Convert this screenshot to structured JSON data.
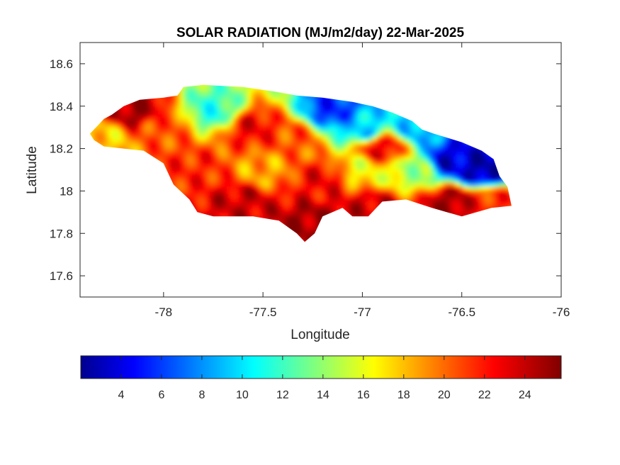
{
  "chart_data": {
    "type": "heatmap",
    "title": "SOLAR RADIATION (MJ/m2/day) 22-Mar-2025",
    "xlabel": "Longitude",
    "ylabel": "Latitude",
    "xlim": [
      -78.42,
      -76.0
    ],
    "ylim": [
      17.5,
      18.7
    ],
    "xticks": [
      -78,
      -77.5,
      -77,
      -76.5,
      -76
    ],
    "xtick_labels": [
      "-78",
      "-77.5",
      "-77",
      "-76.5",
      "-76"
    ],
    "yticks": [
      17.6,
      17.8,
      18.0,
      18.2,
      18.4,
      18.6
    ],
    "ytick_labels": [
      "17.6",
      "17.8",
      "18",
      "18.2",
      "18.4",
      "18.6"
    ],
    "grid": false,
    "colormap": "jet",
    "colorbar": {
      "location": "bottom",
      "range": [
        2.0,
        25.8
      ],
      "ticks": [
        4,
        6,
        8,
        10,
        12,
        14,
        16,
        18,
        20,
        22,
        24
      ],
      "tick_labels": [
        "4",
        "6",
        "8",
        "10",
        "12",
        "14",
        "16",
        "18",
        "20",
        "22",
        "24"
      ]
    },
    "region_outline": [
      [
        -78.37,
        18.27
      ],
      [
        -78.33,
        18.31
      ],
      [
        -78.3,
        18.34
      ],
      [
        -78.26,
        18.36
      ],
      [
        -78.2,
        18.4
      ],
      [
        -78.12,
        18.43
      ],
      [
        -78.0,
        18.44
      ],
      [
        -77.93,
        18.45
      ],
      [
        -77.9,
        18.49
      ],
      [
        -77.8,
        18.5
      ],
      [
        -77.6,
        18.49
      ],
      [
        -77.45,
        18.47
      ],
      [
        -77.33,
        18.45
      ],
      [
        -77.2,
        18.44
      ],
      [
        -77.05,
        18.42
      ],
      [
        -76.95,
        18.4
      ],
      [
        -76.85,
        18.37
      ],
      [
        -76.75,
        18.33
      ],
      [
        -76.7,
        18.29
      ],
      [
        -76.64,
        18.27
      ],
      [
        -76.5,
        18.23
      ],
      [
        -76.4,
        18.19
      ],
      [
        -76.34,
        18.15
      ],
      [
        -76.31,
        18.07
      ],
      [
        -76.27,
        18.02
      ],
      [
        -76.25,
        17.93
      ],
      [
        -76.35,
        17.92
      ],
      [
        -76.5,
        17.88
      ],
      [
        -76.65,
        17.92
      ],
      [
        -76.78,
        17.96
      ],
      [
        -76.9,
        17.95
      ],
      [
        -76.97,
        17.88
      ],
      [
        -77.05,
        17.88
      ],
      [
        -77.1,
        17.92
      ],
      [
        -77.2,
        17.88
      ],
      [
        -77.24,
        17.8
      ],
      [
        -77.29,
        17.76
      ],
      [
        -77.33,
        17.8
      ],
      [
        -77.42,
        17.86
      ],
      [
        -77.55,
        17.88
      ],
      [
        -77.75,
        17.88
      ],
      [
        -77.83,
        17.9
      ],
      [
        -77.87,
        17.96
      ],
      [
        -77.95,
        18.03
      ],
      [
        -78.0,
        18.13
      ],
      [
        -78.1,
        18.19
      ],
      [
        -78.2,
        18.2
      ],
      [
        -78.3,
        18.21
      ],
      [
        -78.35,
        18.24
      ]
    ],
    "field_anchors": [
      {
        "lon": -78.3,
        "lat": 18.25,
        "value": 18
      },
      {
        "lon": -78.15,
        "lat": 18.38,
        "value": 25
      },
      {
        "lon": -78.0,
        "lat": 18.3,
        "value": 21
      },
      {
        "lon": -77.85,
        "lat": 18.1,
        "value": 22
      },
      {
        "lon": -77.75,
        "lat": 18.38,
        "value": 12
      },
      {
        "lon": -77.55,
        "lat": 18.3,
        "value": 23
      },
      {
        "lon": -77.5,
        "lat": 18.1,
        "value": 19
      },
      {
        "lon": -77.6,
        "lat": 17.95,
        "value": 24
      },
      {
        "lon": -77.35,
        "lat": 18.25,
        "value": 21
      },
      {
        "lon": -77.25,
        "lat": 17.85,
        "value": 25
      },
      {
        "lon": -77.2,
        "lat": 18.05,
        "value": 23
      },
      {
        "lon": -77.15,
        "lat": 18.38,
        "value": 6
      },
      {
        "lon": -77.0,
        "lat": 18.3,
        "value": 10
      },
      {
        "lon": -77.0,
        "lat": 18.1,
        "value": 17
      },
      {
        "lon": -76.9,
        "lat": 18.2,
        "value": 23
      },
      {
        "lon": -76.75,
        "lat": 18.1,
        "value": 15
      },
      {
        "lon": -76.7,
        "lat": 18.3,
        "value": 9
      },
      {
        "lon": -76.55,
        "lat": 18.15,
        "value": 4
      },
      {
        "lon": -76.4,
        "lat": 18.1,
        "value": 3
      },
      {
        "lon": -76.55,
        "lat": 17.95,
        "value": 25
      },
      {
        "lon": -76.35,
        "lat": 17.95,
        "value": 22
      },
      {
        "lon": -76.95,
        "lat": 17.92,
        "value": 24
      }
    ]
  }
}
